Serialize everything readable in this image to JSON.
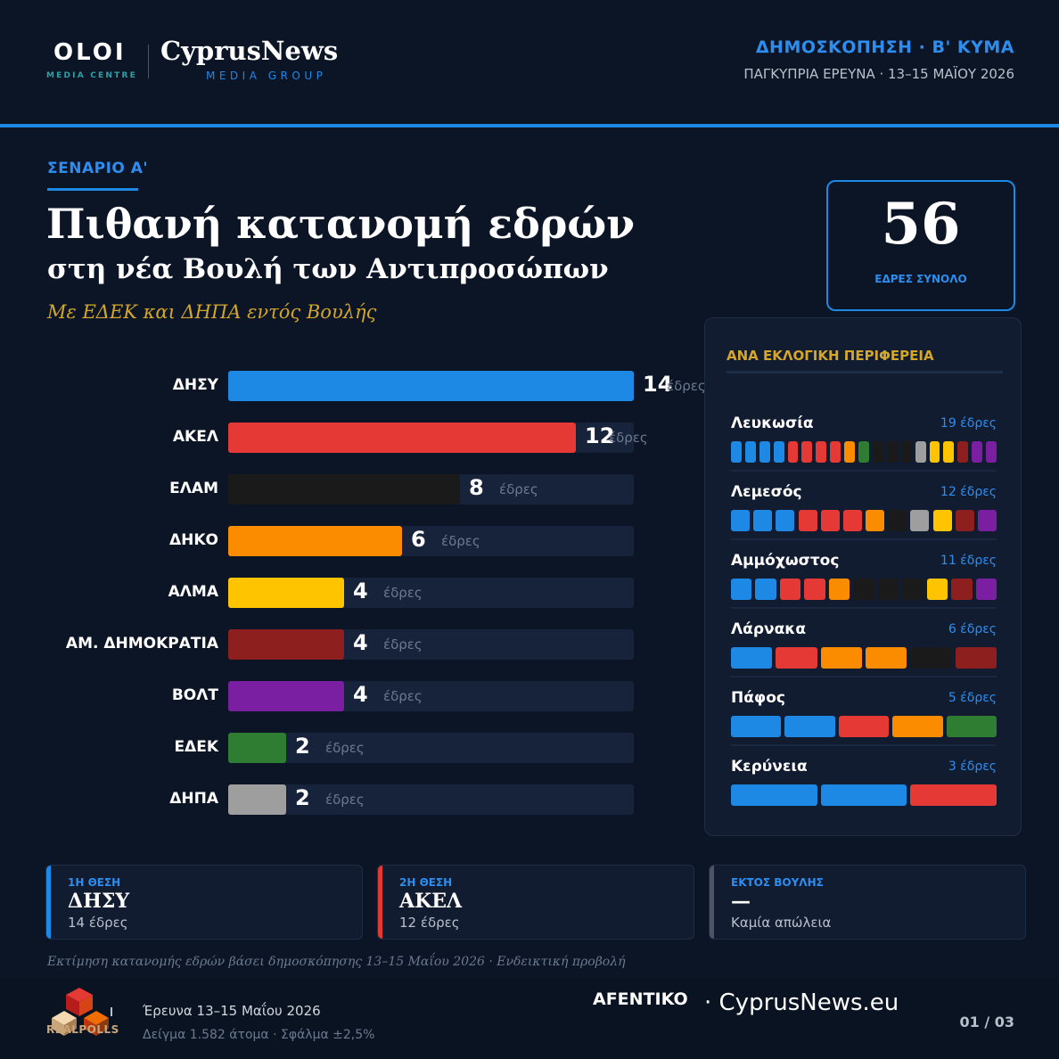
{
  "header": {
    "logo_left": "OLOI",
    "logo_left_sub": "MEDIA CENTRE",
    "logo_right": "CyprusNews",
    "logo_right_sub": "MEDIA GROUP",
    "title": "ΔΗΜΟΣΚΟΠΗΣΗ · Β' ΚΥΜΑ",
    "subtitle": "ΠΑΓΚΥΠΡΙΑ ΕΡΕΥΝΑ · 13–15 ΜΑΪΟΥ 2026"
  },
  "scenario": "ΣΕΝΑΡΙΟ Α'",
  "title": "Πιθανή κατανομή εδρών",
  "subtitle": "στη νέα Βουλή των Αντιπροσώπων",
  "tagline": "Με ΕΔΕΚ και ΔΗΠΑ εντός Βουλής",
  "total": {
    "value": "56",
    "label": "ΕΔΡΕΣ ΣΥΝΟΛΟ"
  },
  "colors": {
    "ΔΗΣΥ": "#1e88e5",
    "ΑΚΕΛ": "#e53935",
    "ΕΛΑΜ": "#1a1a1a",
    "ΔΗΚΟ": "#fb8c00",
    "ΑΛΜΑ": "#ffc400",
    "ΑΜ. ΔΗΜΟΚΡΑΤΙΑ": "#8e1f1f",
    "ΒΟΛΤ": "#7b1fa2",
    "ΕΔΕΚ": "#2e7d32",
    "ΔΗΠΑ": "#9e9e9e"
  },
  "chart_data": {
    "type": "bar",
    "orientation": "horizontal",
    "categories": [
      "ΔΗΣΥ",
      "ΑΚΕΛ",
      "ΕΛΑΜ",
      "ΔΗΚΟ",
      "ΑΛΜΑ",
      "ΑΜ. ΔΗΜΟΚΡΑΤΙΑ",
      "ΒΟΛΤ",
      "ΕΔΕΚ",
      "ΔΗΠΑ"
    ],
    "values": [
      14,
      12,
      8,
      6,
      4,
      4,
      4,
      2,
      2
    ],
    "unit": "έδρες",
    "xlim": [
      0,
      14
    ]
  },
  "regions": {
    "title": "ΑΝΑ ΕΚΛΟΓΙΚΗ ΠΕΡΙΦΕΡΕΙΑ",
    "items": [
      {
        "name": "Λευκωσία",
        "seats_label": "19 έδρες",
        "seats": [
          "ΔΗΣΥ",
          "ΔΗΣΥ",
          "ΔΗΣΥ",
          "ΔΗΣΥ",
          "ΑΚΕΛ",
          "ΑΚΕΛ",
          "ΑΚΕΛ",
          "ΑΚΕΛ",
          "ΔΗΚΟ",
          "ΕΔΕΚ",
          "ΕΛΑΜ",
          "ΕΛΑΜ",
          "ΕΛΑΜ",
          "ΔΗΠΑ",
          "ΑΛΜΑ",
          "ΑΛΜΑ",
          "ΑΜ. ΔΗΜΟΚΡΑΤΙΑ",
          "ΒΟΛΤ",
          "ΒΟΛΤ"
        ]
      },
      {
        "name": "Λεμεσός",
        "seats_label": "12 έδρες",
        "seats": [
          "ΔΗΣΥ",
          "ΔΗΣΥ",
          "ΔΗΣΥ",
          "ΑΚΕΛ",
          "ΑΚΕΛ",
          "ΑΚΕΛ",
          "ΔΗΚΟ",
          "ΕΛΑΜ",
          "ΔΗΠΑ",
          "ΑΛΜΑ",
          "ΑΜ. ΔΗΜΟΚΡΑΤΙΑ",
          "ΒΟΛΤ"
        ]
      },
      {
        "name": "Αμμόχωστος",
        "seats_label": "11 έδρες",
        "seats": [
          "ΔΗΣΥ",
          "ΔΗΣΥ",
          "ΑΚΕΛ",
          "ΑΚΕΛ",
          "ΔΗΚΟ",
          "ΕΛΑΜ",
          "ΕΛΑΜ",
          "ΕΛΑΜ",
          "ΑΛΜΑ",
          "ΑΜ. ΔΗΜΟΚΡΑΤΙΑ",
          "ΒΟΛΤ"
        ]
      },
      {
        "name": "Λάρνακα",
        "seats_label": "6 έδρες",
        "seats": [
          "ΔΗΣΥ",
          "ΑΚΕΛ",
          "ΔΗΚΟ",
          "ΔΗΚΟ",
          "ΕΛΑΜ",
          "ΑΜ. ΔΗΜΟΚΡΑΤΙΑ"
        ]
      },
      {
        "name": "Πάφος",
        "seats_label": "5 έδρες",
        "seats": [
          "ΔΗΣΥ",
          "ΔΗΣΥ",
          "ΑΚΕΛ",
          "ΔΗΚΟ",
          "ΕΔΕΚ"
        ]
      },
      {
        "name": "Κερύνεια",
        "seats_label": "3 έδρες",
        "seats": [
          "ΔΗΣΥ",
          "ΔΗΣΥ",
          "ΑΚΕΛ"
        ]
      }
    ]
  },
  "cards": [
    {
      "key": "1Η ΘΕΣΗ",
      "value": "ΔΗΣΥ",
      "sub": "14 έδρες",
      "color": "#1e88e5"
    },
    {
      "key": "2Η ΘΕΣΗ",
      "value": "ΑΚΕΛ",
      "sub": "12 έδρες",
      "color": "#e53935"
    },
    {
      "key": "ΕΚΤΟΣ ΒΟΥΛΗΣ",
      "value": "—",
      "sub": "Καμία απώλεια",
      "color": "#4a5568"
    }
  ],
  "note": "Εκτίμηση κατανομής εδρών βάσει δημοσκόπησης 13–15 Μαΐου 2026 · Ενδεικτική προβολή",
  "footer": {
    "logo": "REALPOLLS",
    "line1": "Έρευνα 13–15 Μαΐου 2026",
    "line2": "Δείγμα 1.582 άτομα · Σφάλμα ±2,5%",
    "partner1": "AFENTIKO",
    "partner2": "· CyprusNews.eu",
    "page": "01 / 03"
  }
}
